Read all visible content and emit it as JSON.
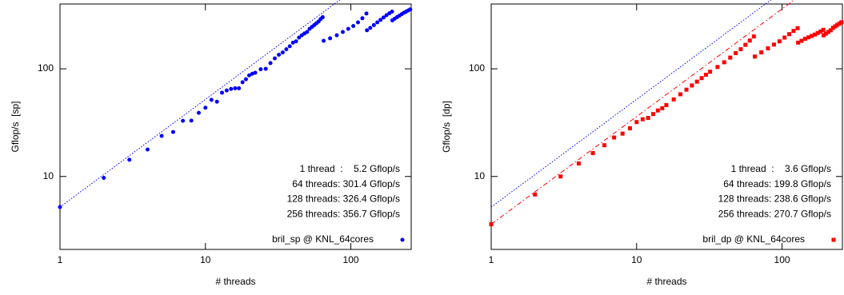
{
  "chart_data": [
    {
      "type": "scatter",
      "xlabel": "# threads",
      "ylabel": "Gflop/s  [sp]",
      "log_x": true,
      "log_y": true,
      "xlim": [
        1,
        260
      ],
      "ylim": [
        2.1,
        400
      ],
      "xticks": [
        1,
        10,
        100
      ],
      "yticks": [
        10,
        100
      ],
      "reference_color": "#0000ff",
      "annotations": [
        "1 thread  :    5.2 Gflop/s",
        "64 threads: 301.4 Gflop/s",
        "128 threads: 326.4 Gflop/s",
        "256 threads: 356.7 Gflop/s"
      ],
      "series": [
        {
          "name": "bril_sp @ KNL_64cores",
          "color": "#0000ff",
          "marker": "circle",
          "x": [
            1,
            2,
            3,
            4,
            5,
            6,
            7,
            8,
            9,
            10,
            11,
            12,
            13,
            14,
            15,
            16,
            17,
            18,
            19,
            20,
            21,
            22,
            24,
            26,
            28,
            30,
            32,
            34,
            36,
            38,
            40,
            42,
            44,
            46,
            48,
            50,
            52,
            54,
            56,
            58,
            60,
            62,
            64,
            65,
            72,
            80,
            88,
            96,
            104,
            112,
            120,
            128,
            129,
            136,
            144,
            152,
            160,
            168,
            176,
            184,
            192,
            193,
            200,
            208,
            216,
            224,
            232,
            240,
            248,
            256
          ],
          "values": [
            5.2,
            9.7,
            14.3,
            17.8,
            23.8,
            25.9,
            32.9,
            33,
            39,
            43.5,
            51.5,
            49.5,
            60,
            63,
            65,
            66,
            66,
            75,
            80,
            87,
            90,
            92,
            99,
            100,
            113,
            125,
            135,
            142,
            152,
            162,
            175,
            180,
            195,
            205,
            213,
            220,
            235,
            245,
            255,
            265,
            275,
            290,
            301.4,
            182,
            192,
            205,
            220,
            235,
            250,
            270,
            295,
            326.4,
            228,
            240,
            255,
            270,
            285,
            300,
            315,
            328,
            340,
            282,
            292,
            302,
            312,
            322,
            332,
            340,
            348,
            356.7
          ]
        }
      ]
    },
    {
      "type": "scatter",
      "xlabel": "# threads",
      "ylabel": "Gflop/s  [dp]",
      "log_x": true,
      "log_y": true,
      "xlim": [
        1,
        260
      ],
      "ylim": [
        2.1,
        400
      ],
      "xticks": [
        1,
        10,
        100
      ],
      "yticks": [
        10,
        100
      ],
      "reference_color": "#0000ff",
      "annotations": [
        "1 thread  :    3.6 Gflop/s",
        "64 threads: 199.8 Gflop/s",
        "128 threads: 238.6 Gflop/s",
        "256 threads: 270.7 Gflop/s"
      ],
      "series": [
        {
          "name": "bril_dp @ KNL_64cores",
          "color": "#ff0000",
          "marker": "square",
          "x": [
            1,
            2,
            3,
            4,
            5,
            6,
            7,
            8,
            9,
            10,
            11,
            12,
            13,
            14,
            15,
            16,
            18,
            20,
            22,
            24,
            26,
            28,
            30,
            32,
            36,
            40,
            44,
            48,
            52,
            56,
            60,
            64,
            65,
            72,
            80,
            88,
            96,
            104,
            112,
            120,
            128,
            129,
            136,
            144,
            152,
            160,
            168,
            176,
            184,
            192,
            193,
            200,
            208,
            216,
            224,
            232,
            240,
            248,
            256
          ],
          "values": [
            3.6,
            6.8,
            10,
            13.2,
            16.5,
            19.5,
            23,
            25,
            28,
            32,
            34,
            35,
            38,
            41,
            43,
            46,
            52,
            58,
            64,
            70,
            76,
            82,
            88,
            94,
            104,
            115,
            127,
            140,
            152,
            167,
            183,
            199.8,
            130,
            142,
            155,
            168,
            180,
            195,
            210,
            225,
            238.6,
            175,
            182,
            190,
            196,
            202,
            208,
            215,
            222,
            230,
            205,
            212,
            220,
            228,
            240,
            248,
            256,
            263,
            270.7
          ]
        }
      ]
    }
  ]
}
